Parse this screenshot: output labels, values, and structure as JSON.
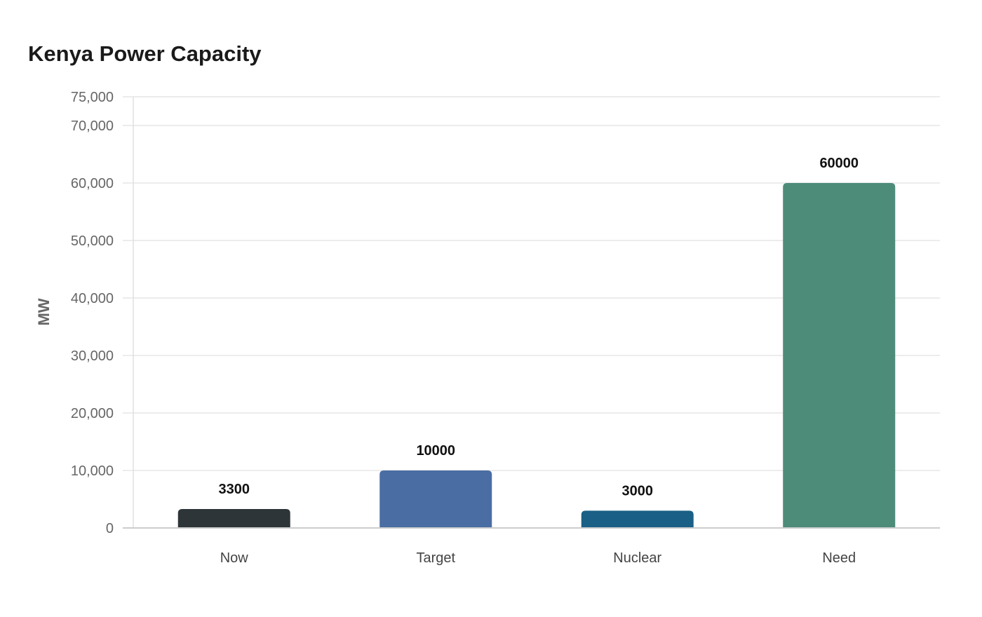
{
  "chart_data": {
    "type": "bar",
    "title": "Kenya Power Capacity",
    "xlabel": "",
    "ylabel": "MW",
    "categories": [
      "Now",
      "Target",
      "Nuclear",
      "Need"
    ],
    "values": [
      3300,
      10000,
      3000,
      60000
    ],
    "value_labels": [
      "3300",
      "10000",
      "3000",
      "60000"
    ],
    "ylim": [
      0,
      75000
    ],
    "yticks": [
      0,
      10000,
      20000,
      30000,
      40000,
      50000,
      60000,
      70000,
      75000
    ],
    "ytick_labels": [
      "0",
      "10,000",
      "20,000",
      "30,000",
      "40,000",
      "50,000",
      "60,000",
      "70,000",
      "75,000"
    ],
    "colors": [
      "#2d3538",
      "#4a6da3",
      "#1a5f85",
      "#4e8c7a"
    ],
    "grid": true,
    "legend": "none"
  }
}
